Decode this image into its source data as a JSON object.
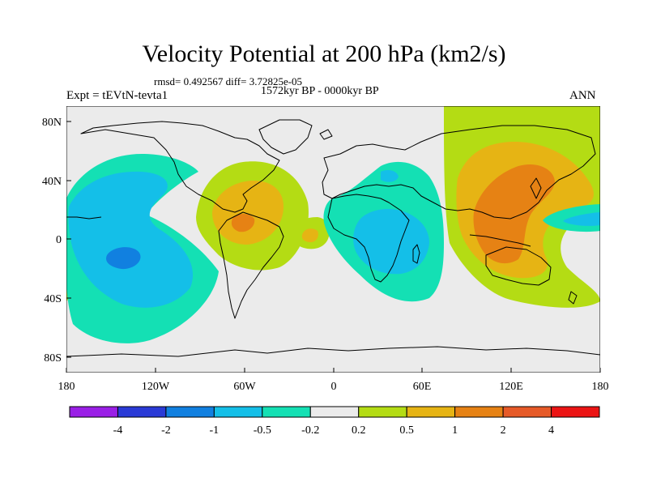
{
  "title": "Velocity Potential at 200 hPa (km2/s)",
  "stats": "rmsd= 0.492567 diff= 3.72825e-05",
  "period": "1572kyr BP - 0000kyr BP",
  "experiment": "Expt = tEVtN-tevta1",
  "season": "ANN",
  "map": {
    "lon_ticks": [
      "180",
      "120W",
      "60W",
      "0",
      "60E",
      "120E",
      "180"
    ],
    "lat_ticks": [
      "80N",
      "40N",
      "0",
      "40S",
      "80S"
    ],
    "land_color": "#ebebeb"
  },
  "colorbar": {
    "colors": [
      "#9a1fe6",
      "#2a3ad6",
      "#1180e0",
      "#14bfe8",
      "#14e0b4",
      "#ebebeb",
      "#b4dc14",
      "#e6b414",
      "#e68214",
      "#e65a28",
      "#eb1414"
    ],
    "labels": [
      "-4",
      "-2",
      "-1",
      "-0.5",
      "-0.2",
      "0.2",
      "0.5",
      "1",
      "2",
      "4"
    ]
  }
}
